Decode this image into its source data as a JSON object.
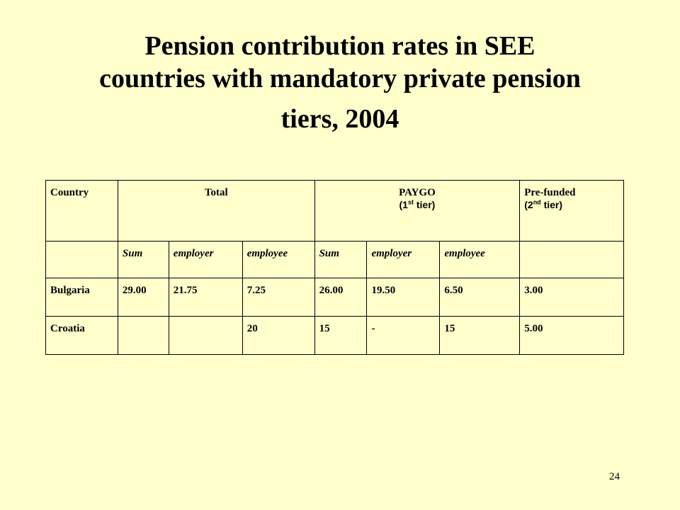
{
  "slide": {
    "title_lines": [
      "Pension contribution rates in SEE",
      "countries with mandatory private pension",
      "tiers, 2004"
    ],
    "page_number": "24"
  },
  "table": {
    "header": {
      "country": "Country",
      "total": "Total",
      "paygo": "PAYGO",
      "paygo_tier_open": "(1",
      "paygo_tier_sup": "st",
      "paygo_tier_close": " tier)",
      "prefunded": "Pre-funded",
      "prefunded_tier_open": "(2",
      "prefunded_tier_sup": "nd",
      "prefunded_tier_close": " tier)"
    },
    "subheader": [
      "",
      "Sum",
      "employer",
      "employee",
      "Sum",
      "employer",
      "employee",
      ""
    ],
    "rows": [
      [
        "Bulgaria",
        "29.00",
        "21.75",
        "7.25",
        "26.00",
        "19.50",
        "6.50",
        "3.00"
      ],
      [
        "Croatia",
        "",
        "",
        "20",
        "15",
        "-",
        "15",
        "5.00"
      ]
    ]
  }
}
